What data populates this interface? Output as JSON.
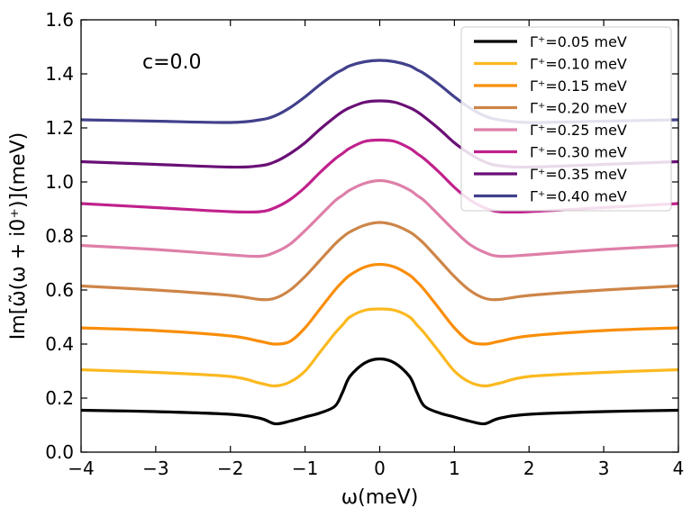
{
  "chart_data": {
    "type": "line",
    "xlabel": "ω(meV)",
    "ylabel": "Im[ω̃(ω + i0⁺)](meV)",
    "xlim": [
      -4,
      4
    ],
    "ylim": [
      0,
      1.6
    ],
    "xticks": [
      "−4",
      "−3",
      "−2",
      "−1",
      "0",
      "1",
      "2",
      "3",
      "4"
    ],
    "yticks": [
      "0.0",
      "0.2",
      "0.4",
      "0.6",
      "0.8",
      "1.0",
      "1.2",
      "1.4",
      "1.6"
    ],
    "annotation": "c=0.0",
    "legend_position": "top-right",
    "grid": false,
    "x": [
      -4,
      -3,
      -2,
      -1.6,
      -1.4,
      -1.2,
      -1,
      -0.8,
      -0.6,
      -0.5,
      -0.4,
      -0.2,
      0,
      0.2,
      0.4,
      0.5,
      0.6,
      0.8,
      1,
      1.2,
      1.4,
      1.6,
      2,
      3,
      4
    ],
    "series": [
      {
        "name": "Γ⁺=0.05 meV",
        "color": "#000000",
        "values": [
          0.155,
          0.15,
          0.14,
          0.125,
          0.105,
          0.115,
          0.13,
          0.145,
          0.17,
          0.22,
          0.28,
          0.33,
          0.345,
          0.33,
          0.28,
          0.22,
          0.17,
          0.145,
          0.13,
          0.115,
          0.105,
          0.125,
          0.14,
          0.15,
          0.155
        ]
      },
      {
        "name": "Γ⁺=0.10 meV",
        "color": "#fbb91f",
        "values": [
          0.305,
          0.295,
          0.28,
          0.255,
          0.245,
          0.26,
          0.3,
          0.37,
          0.44,
          0.47,
          0.5,
          0.525,
          0.53,
          0.525,
          0.5,
          0.47,
          0.44,
          0.37,
          0.3,
          0.26,
          0.245,
          0.255,
          0.28,
          0.295,
          0.305
        ]
      },
      {
        "name": "Γ⁺=0.15 meV",
        "color": "#f98e09",
        "values": [
          0.46,
          0.45,
          0.43,
          0.41,
          0.4,
          0.41,
          0.46,
          0.53,
          0.6,
          0.63,
          0.655,
          0.685,
          0.695,
          0.685,
          0.655,
          0.63,
          0.6,
          0.53,
          0.46,
          0.41,
          0.4,
          0.41,
          0.43,
          0.45,
          0.46
        ]
      },
      {
        "name": "Γ⁺=0.20 meV",
        "color": "#cd8548",
        "values": [
          0.615,
          0.6,
          0.58,
          0.565,
          0.57,
          0.6,
          0.65,
          0.71,
          0.77,
          0.795,
          0.815,
          0.84,
          0.85,
          0.84,
          0.815,
          0.795,
          0.77,
          0.71,
          0.65,
          0.6,
          0.57,
          0.565,
          0.58,
          0.6,
          0.615
        ]
      },
      {
        "name": "Γ⁺=0.25 meV",
        "color": "#de7fa8",
        "values": [
          0.765,
          0.75,
          0.73,
          0.725,
          0.74,
          0.77,
          0.82,
          0.875,
          0.93,
          0.95,
          0.97,
          0.995,
          1.005,
          0.995,
          0.97,
          0.95,
          0.93,
          0.875,
          0.82,
          0.77,
          0.74,
          0.725,
          0.73,
          0.75,
          0.765
        ]
      },
      {
        "name": "Γ⁺=0.30 meV",
        "color": "#c0218c",
        "values": [
          0.92,
          0.905,
          0.89,
          0.89,
          0.905,
          0.935,
          0.98,
          1.035,
          1.085,
          1.105,
          1.125,
          1.15,
          1.155,
          1.15,
          1.125,
          1.105,
          1.085,
          1.035,
          0.98,
          0.935,
          0.905,
          0.89,
          0.89,
          0.905,
          0.92
        ]
      },
      {
        "name": "Γ⁺=0.35 meV",
        "color": "#6a0f76",
        "values": [
          1.075,
          1.065,
          1.055,
          1.06,
          1.075,
          1.105,
          1.145,
          1.195,
          1.24,
          1.26,
          1.275,
          1.295,
          1.3,
          1.295,
          1.275,
          1.26,
          1.24,
          1.195,
          1.145,
          1.105,
          1.075,
          1.06,
          1.055,
          1.065,
          1.075
        ]
      },
      {
        "name": "Γ⁺=0.40 meV",
        "color": "#42408c",
        "values": [
          1.23,
          1.225,
          1.22,
          1.23,
          1.245,
          1.275,
          1.315,
          1.36,
          1.4,
          1.415,
          1.43,
          1.445,
          1.45,
          1.445,
          1.43,
          1.415,
          1.4,
          1.36,
          1.315,
          1.275,
          1.245,
          1.23,
          1.22,
          1.225,
          1.23
        ]
      }
    ]
  }
}
